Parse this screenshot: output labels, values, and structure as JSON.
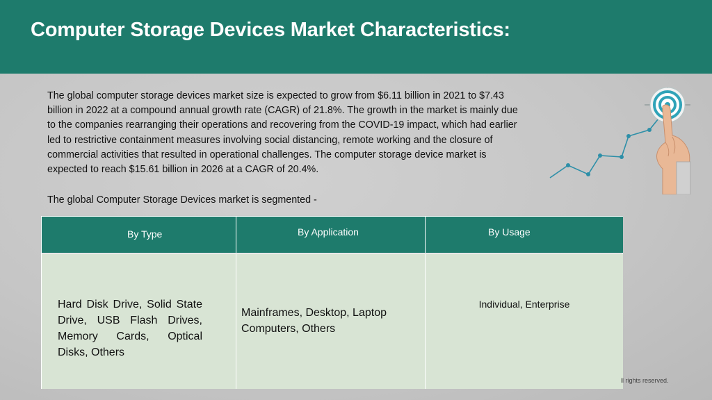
{
  "header": {
    "title": "Computer Storage Devices Market Characteristics:",
    "background_color": "#1e7b6c"
  },
  "content": {
    "paragraph": "The global computer storage devices market size is expected to grow from $6.11 billion in 2021 to $7.43 billion in 2022 at a compound annual growth rate (CAGR) of 21.8%. The growth in the market is mainly due to the companies rearranging their operations and recovering from the COVID-19 impact, which had earlier led to restrictive containment measures involving social distancing, remote working and the closure of commercial activities that resulted in operational challenges. The computer storage device market is expected to reach $15.61 billion in 2026 at a CAGR of 20.4%.",
    "segmented_intro": "The global Computer Storage Devices market is segmented -"
  },
  "illustration": {
    "icon": "target-hand-growth-chart-icon"
  },
  "table": {
    "headers": [
      "By Type",
      "By Application",
      "By Usage"
    ],
    "cells": [
      "Hard Disk Drive, Solid State Drive, USB Flash Drives, Memory Cards, Optical Disks, Others",
      "Mainframes, Desktop, Laptop Computers, Others",
      "Individual, Enterprise"
    ],
    "header_color": "#1e7b6c",
    "cell_color": "#d8e4d4"
  },
  "footer": {
    "note": "ll rights reserved."
  }
}
